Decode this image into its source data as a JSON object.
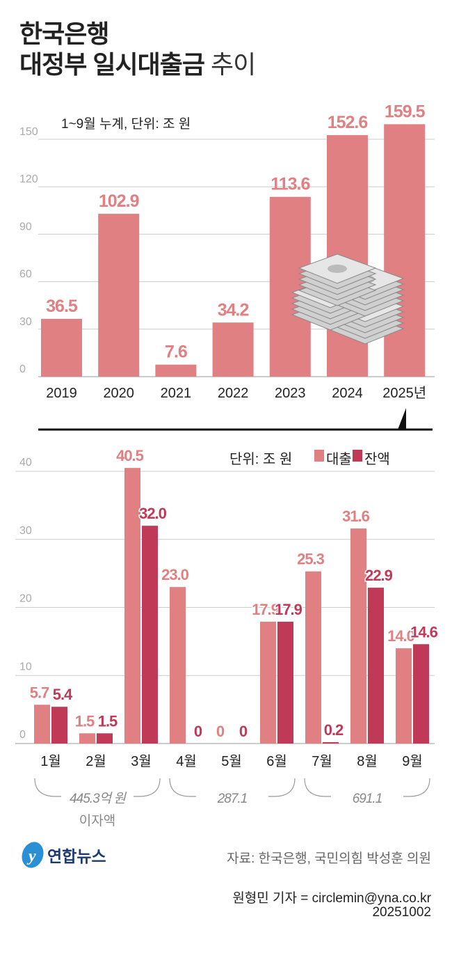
{
  "title": {
    "line1": "한국은행",
    "line2_bold": "대정부 일시대출금",
    "line2_light": "추이"
  },
  "chart_data": [
    {
      "type": "bar",
      "subtitle": "1~9월 누계, 단위: 조 원",
      "categories": [
        "2019",
        "2020",
        "2021",
        "2022",
        "2023",
        "2024",
        "2025년"
      ],
      "values": [
        36.5,
        102.9,
        7.6,
        34.2,
        113.6,
        152.6,
        159.5
      ],
      "value_labels": [
        "36.5",
        "102.9",
        "7.6",
        "34.2",
        "113.6",
        "152.6",
        "159.5"
      ],
      "yticks": [
        "0",
        "30",
        "60",
        "90",
        "120",
        "150"
      ],
      "ylim": [
        0,
        150
      ],
      "grid": true,
      "color": "#e08083"
    },
    {
      "type": "bar",
      "unit": "단위: 조 원",
      "categories": [
        "1월",
        "2월",
        "3월",
        "4월",
        "5월",
        "6월",
        "7월",
        "8월",
        "9월"
      ],
      "series": [
        {
          "name": "대출",
          "color": "#e08083",
          "values": [
            5.7,
            1.5,
            40.5,
            23.0,
            0,
            17.9,
            25.3,
            31.6,
            14.0
          ],
          "labels": [
            "5.7",
            "1.5",
            "40.5",
            "23.0",
            "0",
            "17.9",
            "25.3",
            "31.6",
            "14.0"
          ]
        },
        {
          "name": "잔액",
          "color": "#c03a58",
          "values": [
            5.4,
            1.5,
            32.0,
            0,
            0,
            17.9,
            0.2,
            22.9,
            14.6
          ],
          "labels": [
            "5.4",
            "1.5",
            "32.0",
            "0",
            "0",
            "17.9",
            "0.2",
            "22.9",
            "14.6"
          ]
        }
      ],
      "yticks": [
        "0",
        "10",
        "20",
        "30",
        "40"
      ],
      "ylim": [
        0,
        40
      ],
      "grid": true,
      "legend": "top-right",
      "annotations": [
        {
          "label": "445.3억 원",
          "sub": "이자액"
        },
        {
          "label": "287.1"
        },
        {
          "label": "691.1"
        }
      ]
    }
  ],
  "footer": {
    "logo": "연합뉴스",
    "source": "자료: 한국은행, 국민의힘 박성훈 의원",
    "credit": "원형민 기자 = circlemin@yna.co.kr",
    "date": "20251002"
  }
}
